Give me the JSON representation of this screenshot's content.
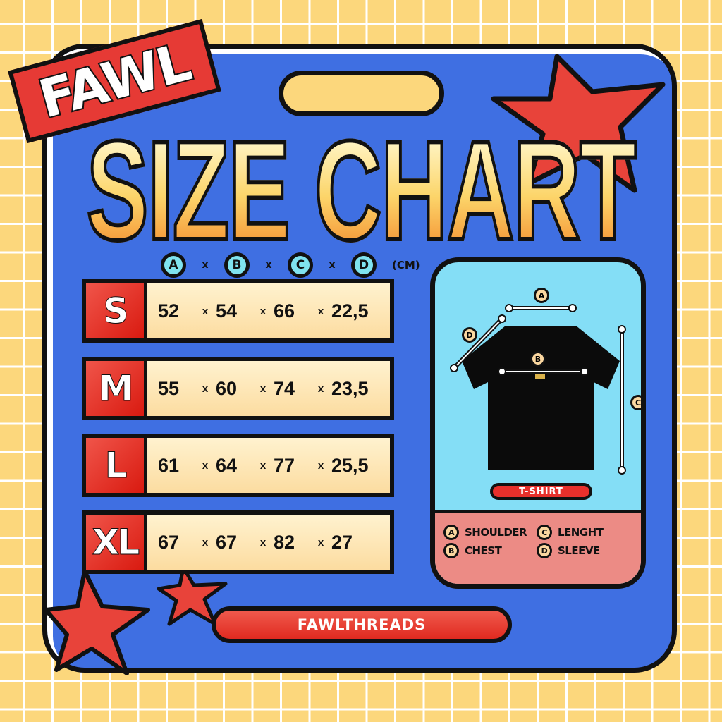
{
  "brand_badge": "FAWL",
  "title": "SIZE CHART",
  "header": {
    "columns": [
      "A",
      "B",
      "C",
      "D"
    ],
    "separator": "x",
    "unit": "(CM)"
  },
  "sizes": [
    {
      "label": "S",
      "values": [
        "52",
        "54",
        "66",
        "22,5"
      ]
    },
    {
      "label": "M",
      "values": [
        "55",
        "60",
        "74",
        "23,5"
      ]
    },
    {
      "label": "L",
      "values": [
        "61",
        "64",
        "77",
        "25,5"
      ]
    },
    {
      "label": "XL",
      "values": [
        "67",
        "67",
        "82",
        "27"
      ]
    }
  ],
  "diagram": {
    "product_label": "T-SHIRT",
    "markers": [
      "A",
      "B",
      "C",
      "D"
    ],
    "legend": [
      {
        "key": "A",
        "label": "SHOULDER"
      },
      {
        "key": "C",
        "label": "LENGHT"
      },
      {
        "key": "B",
        "label": "CHEST"
      },
      {
        "key": "D",
        "label": "SLEEVE"
      }
    ]
  },
  "footer": "FAWLTHREADS",
  "colors": {
    "background": "#fcd77c",
    "card": "#3f6fe2",
    "accent_red": "#e63a35",
    "cream": "#fff2cf",
    "panel_blue": "#84def6",
    "panel_pink": "#ec8b85"
  }
}
